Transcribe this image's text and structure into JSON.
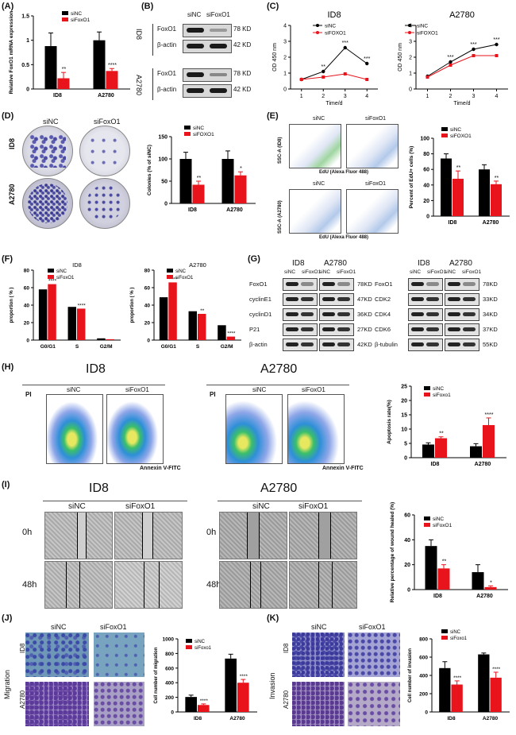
{
  "panels": {
    "A": {
      "label": "(A)"
    },
    "B": {
      "label": "(B)",
      "col1": "siNC",
      "col2": "siFoxO1",
      "groups": [
        "ID8",
        "A2780"
      ],
      "rows": [
        {
          "name": "FoxO1",
          "kd": "78 KD"
        },
        {
          "name": "β-actin",
          "kd": "42 KD"
        },
        {
          "name": "FoxO1",
          "kd": "78 KD"
        },
        {
          "name": "β-actin",
          "kd": "42 KD"
        }
      ]
    },
    "C": {
      "label": "(C)"
    },
    "D": {
      "label": "(D)",
      "col1": "siNC",
      "col2": "siFoxO1",
      "row1": "ID8",
      "row2": "A2780"
    },
    "E": {
      "label": "(E)",
      "siNC": "siNC",
      "siFoxO1": "siFoxO1",
      "ylabel_top": "SSC-A (ID8)",
      "ylabel_bot": "SSC-A (A2780)",
      "xlabel": "EdU (Alexa Fluor 488)"
    },
    "F": {
      "label": "(F)"
    },
    "G": {
      "label": "(G)",
      "left": {
        "groups": [
          "ID8",
          "A2780"
        ],
        "cols": [
          "siNC",
          "siFoxO1",
          "siNC",
          "siFoxO1"
        ],
        "rows": [
          {
            "name": "FoxO1",
            "kd": "78KD"
          },
          {
            "name": "cyclinE1",
            "kd": "47KD"
          },
          {
            "name": "cyclinD1",
            "kd": "36KD"
          },
          {
            "name": "P21",
            "kd": "27KD"
          },
          {
            "name": "β-actin",
            "kd": "42KD"
          }
        ]
      },
      "right": {
        "groups": [
          "ID8",
          "A2780"
        ],
        "cols": [
          "siNC",
          "siFoxO1",
          "siNC",
          "siFoxO1"
        ],
        "rows": [
          {
            "name": "FoxO1",
            "kd": "78KD"
          },
          {
            "name": "CDK2",
            "kd": "33KD"
          },
          {
            "name": "CDK4",
            "kd": "34KD"
          },
          {
            "name": "CDK6",
            "kd": "37KD"
          },
          {
            "name": "β-tubulin",
            "kd": "55KD"
          }
        ]
      }
    },
    "H": {
      "label": "(H)",
      "title1": "ID8",
      "title2": "A2780",
      "siNC": "siNC",
      "siFoxO1": "siFoxO1",
      "ylabel": "PI",
      "xlabel": "Annexin V-FITC"
    },
    "I": {
      "label": "(I)",
      "title1": "ID8",
      "title2": "A2780",
      "siNC": "siNC",
      "siFoxO1": "siFoxO1",
      "t0": "0h",
      "t48": "48h"
    },
    "J": {
      "label": "(J)",
      "siNC": "siNC",
      "siFoxO1": "siFoxO1",
      "row1": "ID8",
      "row2": "A2780",
      "side": "Migration"
    },
    "K": {
      "label": "(K)",
      "siNC": "siNC",
      "siFoxO1": "siFoxO1",
      "row1": "ID8",
      "row2": "A2780",
      "side": "Invasion"
    }
  },
  "colors": {
    "siNC": "#000000",
    "siFoxO1": "#e8131b"
  },
  "chart_data": [
    {
      "id": "A",
      "type": "bar",
      "categories": [
        "ID8",
        "A2780"
      ],
      "ylabel": "Relative FoxO1 mRNA expression",
      "ylim": [
        0,
        1.5
      ],
      "yticks": [
        0.0,
        0.5,
        1.0,
        1.5
      ],
      "series": [
        {
          "name": "siNC",
          "values": [
            0.88,
            1.0
          ],
          "err": [
            0.27,
            0.17
          ]
        },
        {
          "name": "siFoxO1",
          "values": [
            0.22,
            0.37
          ],
          "err": [
            0.12,
            0.05
          ]
        }
      ],
      "sig": [
        "**",
        "****"
      ],
      "legend": [
        "siNC",
        "siFoxO1"
      ]
    },
    {
      "id": "C1",
      "type": "line",
      "title": "ID8",
      "xlabel": "Time/d",
      "ylabel": "OD 450 nm",
      "x": [
        1,
        2,
        3,
        4
      ],
      "ylim": [
        0,
        4
      ],
      "yticks": [
        0,
        1,
        2,
        3,
        4
      ],
      "series": [
        {
          "name": "siNC",
          "values": [
            0.6,
            1.1,
            2.6,
            1.6
          ]
        },
        {
          "name": "siFoxO1",
          "values": [
            0.6,
            0.75,
            0.95,
            0.6
          ]
        }
      ],
      "sig": [
        "",
        "**",
        "***",
        "***"
      ],
      "legend": [
        "siNC",
        "siFOXO1"
      ]
    },
    {
      "id": "C2",
      "type": "line",
      "title": "A2780",
      "xlabel": "Time/d",
      "ylabel": "OD 450 nm",
      "x": [
        1,
        2,
        3,
        4
      ],
      "ylim": [
        0,
        4
      ],
      "yticks": [
        0,
        1,
        2,
        3,
        4
      ],
      "series": [
        {
          "name": "siNC",
          "values": [
            0.8,
            1.7,
            2.5,
            2.8
          ]
        },
        {
          "name": "siFoxO1",
          "values": [
            0.75,
            1.5,
            2.1,
            2.1
          ]
        }
      ],
      "sig": [
        "",
        "***",
        "***",
        "***"
      ],
      "legend": [
        "siNC",
        "siFOXO1"
      ]
    },
    {
      "id": "D",
      "type": "bar",
      "categories": [
        "ID8",
        "A2780"
      ],
      "ylabel": "Colonies (% of siNC)",
      "ylim": [
        0,
        150
      ],
      "yticks": [
        0,
        50,
        100,
        150
      ],
      "series": [
        {
          "name": "siNC",
          "values": [
            100,
            100
          ],
          "err": [
            15,
            18
          ]
        },
        {
          "name": "siFoxO1",
          "values": [
            42,
            63
          ],
          "err": [
            8,
            8
          ]
        }
      ],
      "sig": [
        "**",
        "*"
      ],
      "legend": [
        "siNC",
        "siFOXO1"
      ]
    },
    {
      "id": "E",
      "type": "bar",
      "categories": [
        "ID8",
        "A2780"
      ],
      "ylabel": "Percent of EdU+ cells (%)",
      "ylim": [
        0,
        100
      ],
      "yticks": [
        0,
        20,
        40,
        60,
        80,
        100
      ],
      "series": [
        {
          "name": "siNC",
          "values": [
            74,
            60
          ],
          "err": [
            6,
            6
          ]
        },
        {
          "name": "siFoxO1",
          "values": [
            48,
            41
          ],
          "err": [
            10,
            4
          ]
        }
      ],
      "sig": [
        "**",
        "**"
      ],
      "legend": [
        "siNC",
        "siFOXO1"
      ]
    },
    {
      "id": "F1",
      "type": "bar",
      "title": "ID8",
      "categories": [
        "G0/G1",
        "S",
        "G2/M"
      ],
      "ylabel": "proportion ( % )",
      "ylim": [
        0,
        80
      ],
      "yticks": [
        0,
        20,
        40,
        60,
        80
      ],
      "series": [
        {
          "name": "siNC",
          "values": [
            58,
            38,
            2
          ]
        },
        {
          "name": "siFoxO1",
          "values": [
            64,
            36,
            1
          ]
        }
      ],
      "sig": [
        "****",
        "****",
        ""
      ],
      "legend": [
        "siNC",
        "siFoxO1"
      ]
    },
    {
      "id": "F2",
      "type": "bar",
      "title": "A2780",
      "categories": [
        "G0/G1",
        "S",
        "G2/M"
      ],
      "ylabel": "proportion ( % )",
      "ylim": [
        0,
        80
      ],
      "yticks": [
        0,
        20,
        40,
        60,
        80
      ],
      "series": [
        {
          "name": "siNC",
          "values": [
            49,
            33,
            17
          ]
        },
        {
          "name": "siFoxO1",
          "values": [
            66,
            30,
            4
          ]
        }
      ],
      "sig": [
        "****",
        "**",
        "****"
      ],
      "legend": [
        "siNC",
        "siFoxO1"
      ]
    },
    {
      "id": "H",
      "type": "bar",
      "categories": [
        "ID8",
        "A2780"
      ],
      "ylabel": "Apoptosis rate(%)",
      "ylim": [
        0,
        25
      ],
      "yticks": [
        0,
        5,
        10,
        15,
        20,
        25
      ],
      "series": [
        {
          "name": "siNC",
          "values": [
            4.6,
            4.0
          ],
          "err": [
            0.6,
            0.9
          ]
        },
        {
          "name": "siFoxo1",
          "values": [
            6.8,
            11.4
          ],
          "err": [
            0.5,
            2.5
          ]
        }
      ],
      "sig": [
        "**",
        "****"
      ],
      "legend": [
        "siNC",
        "siFoxo1"
      ]
    },
    {
      "id": "I",
      "type": "bar",
      "categories": [
        "ID8",
        "A2780"
      ],
      "ylabel": "Relative percentage of wound healed (%)",
      "ylim": [
        0,
        60
      ],
      "yticks": [
        0,
        20,
        40,
        60
      ],
      "series": [
        {
          "name": "siNC",
          "values": [
            35,
            14
          ],
          "err": [
            5,
            6
          ]
        },
        {
          "name": "siFoxO1",
          "values": [
            17,
            2
          ],
          "err": [
            3,
            1
          ]
        }
      ],
      "sig": [
        "**",
        "*"
      ],
      "legend": [
        "siNC",
        "siFoxO1"
      ]
    },
    {
      "id": "J",
      "type": "bar",
      "categories": [
        "ID8",
        "A2780"
      ],
      "ylabel": "Cell number of migration",
      "ylim": [
        0,
        1000
      ],
      "yticks": [
        0,
        200,
        400,
        600,
        800,
        1000
      ],
      "series": [
        {
          "name": "siNC",
          "values": [
            205,
            730
          ],
          "err": [
            25,
            60
          ]
        },
        {
          "name": "siFoxO1",
          "values": [
            95,
            400
          ],
          "err": [
            15,
            45
          ]
        }
      ],
      "sig": [
        "****",
        "****"
      ],
      "legend": [
        "siNC",
        "siFoxo1"
      ]
    },
    {
      "id": "K",
      "type": "bar",
      "categories": [
        "ID8",
        "A2780"
      ],
      "ylabel": "Cell number of invasion",
      "ylim": [
        0,
        800
      ],
      "yticks": [
        0,
        200,
        400,
        600,
        800
      ],
      "series": [
        {
          "name": "siNC",
          "values": [
            480,
            630
          ],
          "err": [
            70,
            15
          ]
        },
        {
          "name": "siFoxO1",
          "values": [
            300,
            375
          ],
          "err": [
            40,
            60
          ]
        }
      ],
      "sig": [
        "****",
        "****"
      ],
      "legend": [
        "siNC",
        "siFoxo1"
      ]
    }
  ]
}
